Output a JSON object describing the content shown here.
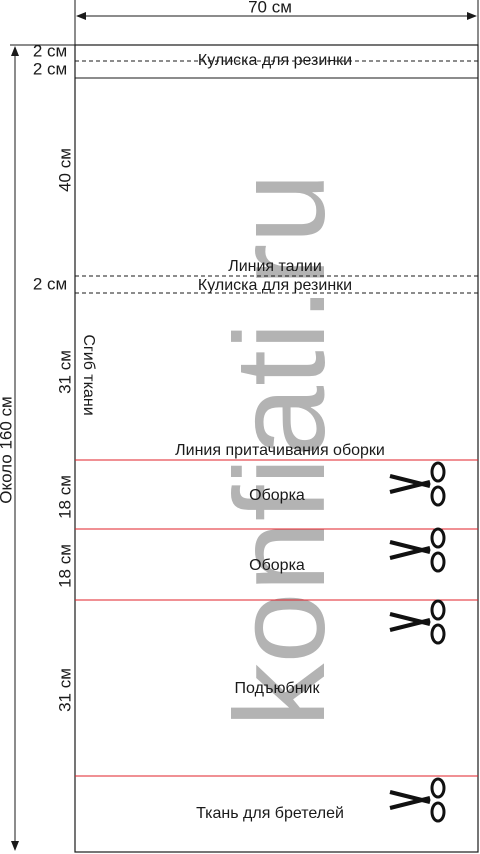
{
  "header": {
    "width_label": "70 см",
    "height_label": "Около 160 см"
  },
  "dimensions": [
    "2 см",
    "2 см",
    "40 см",
    "2 см",
    "31 см",
    "18 см",
    "18 см",
    "31 см"
  ],
  "labels": {
    "casing_top": "Кулиска для резинки",
    "waist_line": "Линия талии",
    "casing_waist": "Кулиска для резинки",
    "fold": "Сгиб ткани",
    "ruffle_line": "Линия притачивания оборки",
    "ruffle_1": "Оборка",
    "ruffle_2": "Оборка",
    "underskirt": "Подъюбник",
    "straps": "Ткань для бретелей"
  },
  "watermark": "konfiati.ru"
}
